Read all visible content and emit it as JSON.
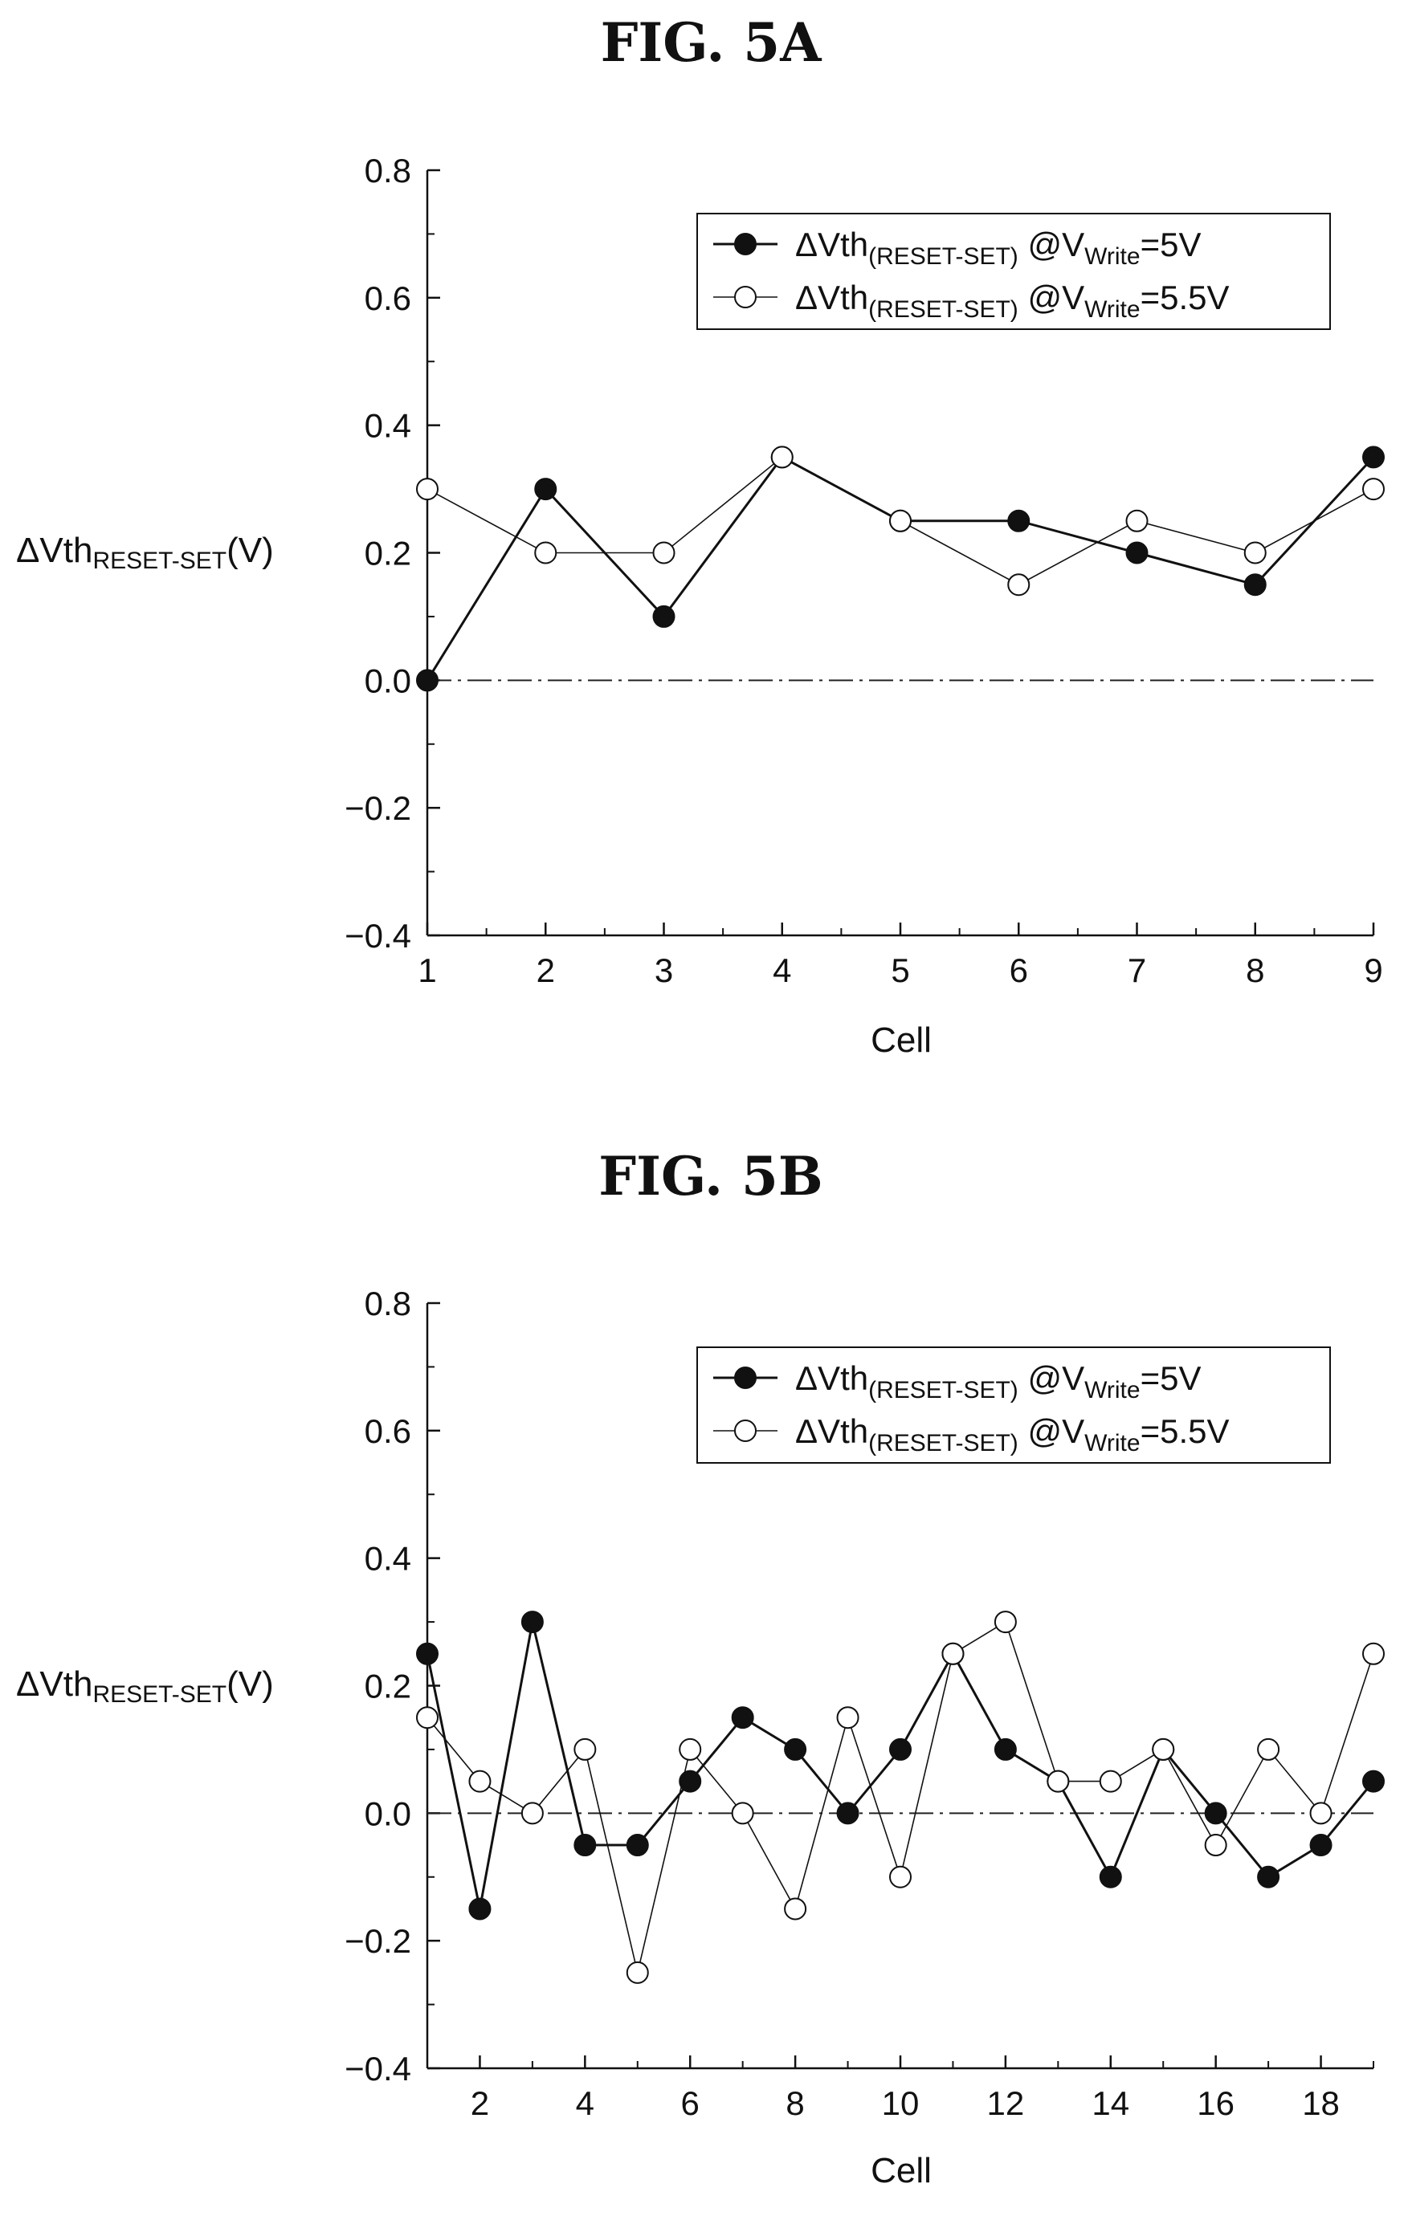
{
  "figures": [
    {
      "title": "FIG. 5A",
      "ylabel_main": "ΔVth",
      "ylabel_sub": "RESET-SET",
      "ylabel_unit": "(V)",
      "xlabel": "Cell"
    },
    {
      "title": "FIG. 5B",
      "ylabel_main": "ΔVth",
      "ylabel_sub": "RESET-SET",
      "ylabel_unit": "(V)",
      "xlabel": "Cell"
    }
  ],
  "legend": {
    "prefix": "ΔVth",
    "sub1": "(RESET-SET)",
    "at": " @V",
    "sub2": "Write",
    "items": [
      "=5V",
      "=5.5V"
    ]
  },
  "chart_data": [
    {
      "type": "line",
      "title": "FIG. 5A",
      "xlabel": "Cell",
      "ylabel": "ΔVth RESET-SET (V)",
      "xlim": [
        1,
        9
      ],
      "ylim": [
        -0.4,
        0.8
      ],
      "x_ticks": [
        1,
        2,
        3,
        4,
        5,
        6,
        7,
        8,
        9
      ],
      "x_tick_labels": [
        "1",
        "2",
        "3",
        "4",
        "5",
        "6",
        "7",
        "8",
        "9"
      ],
      "y_ticks": [
        -0.4,
        -0.2,
        0.0,
        0.2,
        0.4,
        0.6,
        0.8
      ],
      "y_tick_labels": [
        "−0.4",
        "−0.2",
        "0.0",
        "0.2",
        "0.4",
        "0.6",
        "0.8"
      ],
      "x": [
        1,
        2,
        3,
        4,
        5,
        6,
        7,
        8,
        9
      ],
      "series": [
        {
          "name": "ΔVth(RESET-SET) @V Write =5V",
          "marker": "filled",
          "values": [
            0.0,
            0.3,
            0.1,
            0.35,
            0.25,
            0.25,
            0.2,
            0.15,
            0.35
          ]
        },
        {
          "name": "ΔVth(RESET-SET) @V Write =5.5V",
          "marker": "open",
          "values": [
            0.3,
            0.2,
            0.2,
            0.35,
            0.25,
            0.15,
            0.25,
            0.2,
            0.3
          ]
        }
      ],
      "reference_line": {
        "y": 0.0,
        "style": "dash-dot"
      },
      "legend_position": "top-right"
    },
    {
      "type": "line",
      "title": "FIG. 5B",
      "xlabel": "Cell",
      "ylabel": "ΔVth RESET-SET (V)",
      "xlim": [
        1,
        19
      ],
      "ylim": [
        -0.4,
        0.8
      ],
      "x_ticks": [
        2,
        4,
        6,
        8,
        10,
        12,
        14,
        16,
        18
      ],
      "x_tick_labels": [
        "2",
        "4",
        "6",
        "8",
        "10",
        "12",
        "14",
        "16",
        "18"
      ],
      "y_ticks": [
        -0.4,
        -0.2,
        0.0,
        0.2,
        0.4,
        0.6,
        0.8
      ],
      "y_tick_labels": [
        "−0.4",
        "−0.2",
        "0.0",
        "0.2",
        "0.4",
        "0.6",
        "0.8"
      ],
      "x": [
        1,
        2,
        3,
        4,
        5,
        6,
        7,
        8,
        9,
        10,
        11,
        12,
        13,
        14,
        15,
        16,
        17,
        18,
        19
      ],
      "series": [
        {
          "name": "ΔVth(RESET-SET) @V Write =5V",
          "marker": "filled",
          "values": [
            0.25,
            -0.15,
            0.3,
            -0.05,
            -0.05,
            0.05,
            0.15,
            0.1,
            0.0,
            0.1,
            0.25,
            0.1,
            0.05,
            -0.1,
            0.1,
            0.0,
            -0.1,
            -0.05,
            0.05
          ]
        },
        {
          "name": "ΔVth(RESET-SET) @V Write =5.5V",
          "marker": "open",
          "values": [
            0.15,
            0.05,
            0.0,
            0.1,
            -0.25,
            0.1,
            0.0,
            -0.15,
            0.15,
            -0.1,
            0.25,
            0.3,
            0.05,
            0.05,
            0.1,
            -0.05,
            0.1,
            0.0,
            0.25
          ]
        }
      ],
      "reference_line": {
        "y": 0.0,
        "style": "dash-dot"
      },
      "legend_position": "top-right"
    }
  ]
}
